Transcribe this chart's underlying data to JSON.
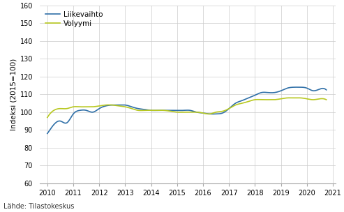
{
  "title": "",
  "ylabel": "Indeksi (2015=100)",
  "source_text": "Lähde: Tilastokeskus",
  "ylim": [
    60,
    160
  ],
  "yticks": [
    60,
    70,
    80,
    90,
    100,
    110,
    120,
    130,
    140,
    150,
    160
  ],
  "xlim_start": 2009.7,
  "xlim_end": 2021.1,
  "xticks": [
    2010,
    2011,
    2012,
    2013,
    2014,
    2015,
    2016,
    2017,
    2018,
    2019,
    2020,
    2021
  ],
  "liikevaihto_color": "#3070a8",
  "volyymi_color": "#b8c820",
  "background_color": "#ffffff",
  "grid_color": "#cccccc",
  "liikevaihto_label": "Liikevaihto",
  "volyymi_label": "Volyymi",
  "liikevaihto_x": [
    2010.0,
    2010.25,
    2010.5,
    2010.75,
    2011.0,
    2011.25,
    2011.5,
    2011.75,
    2012.0,
    2012.25,
    2012.5,
    2012.75,
    2013.0,
    2013.25,
    2013.5,
    2013.75,
    2014.0,
    2014.25,
    2014.5,
    2014.75,
    2015.0,
    2015.25,
    2015.5,
    2015.75,
    2016.0,
    2016.25,
    2016.5,
    2016.75,
    2017.0,
    2017.25,
    2017.5,
    2017.75,
    2018.0,
    2018.25,
    2018.5,
    2018.75,
    2019.0,
    2019.25,
    2019.5,
    2019.75,
    2020.0,
    2020.25,
    2020.5,
    2020.75
  ],
  "liikevaihto_y": [
    88.0,
    93.0,
    95.0,
    94.0,
    99.0,
    101.0,
    101.0,
    100.0,
    102.0,
    103.5,
    104.0,
    104.0,
    104.0,
    103.0,
    102.0,
    101.5,
    101.0,
    101.0,
    101.0,
    101.0,
    101.0,
    101.0,
    101.0,
    100.0,
    99.5,
    99.0,
    99.0,
    99.5,
    102.0,
    105.0,
    106.5,
    108.0,
    109.5,
    111.0,
    111.0,
    111.0,
    112.0,
    113.5,
    114.0,
    114.0,
    113.5,
    112.0,
    113.0,
    112.5
  ],
  "volyymi_x": [
    2010.0,
    2010.25,
    2010.5,
    2010.75,
    2011.0,
    2011.25,
    2011.5,
    2011.75,
    2012.0,
    2012.25,
    2012.5,
    2012.75,
    2013.0,
    2013.25,
    2013.5,
    2013.75,
    2014.0,
    2014.25,
    2014.5,
    2014.75,
    2015.0,
    2015.25,
    2015.5,
    2015.75,
    2016.0,
    2016.25,
    2016.5,
    2016.75,
    2017.0,
    2017.25,
    2017.5,
    2017.75,
    2018.0,
    2018.25,
    2018.5,
    2018.75,
    2019.0,
    2019.25,
    2019.5,
    2019.75,
    2020.0,
    2020.25,
    2020.5,
    2020.75
  ],
  "volyymi_y": [
    97.0,
    101.0,
    102.0,
    102.0,
    103.0,
    103.0,
    103.0,
    103.0,
    103.5,
    104.0,
    104.0,
    103.5,
    103.0,
    102.0,
    101.0,
    101.0,
    101.0,
    101.0,
    101.0,
    100.5,
    100.0,
    100.0,
    100.0,
    100.0,
    99.5,
    99.0,
    100.0,
    100.5,
    102.0,
    104.0,
    105.0,
    106.0,
    107.0,
    107.0,
    107.0,
    107.0,
    107.5,
    108.0,
    108.0,
    108.0,
    107.5,
    107.0,
    107.5,
    107.0
  ]
}
